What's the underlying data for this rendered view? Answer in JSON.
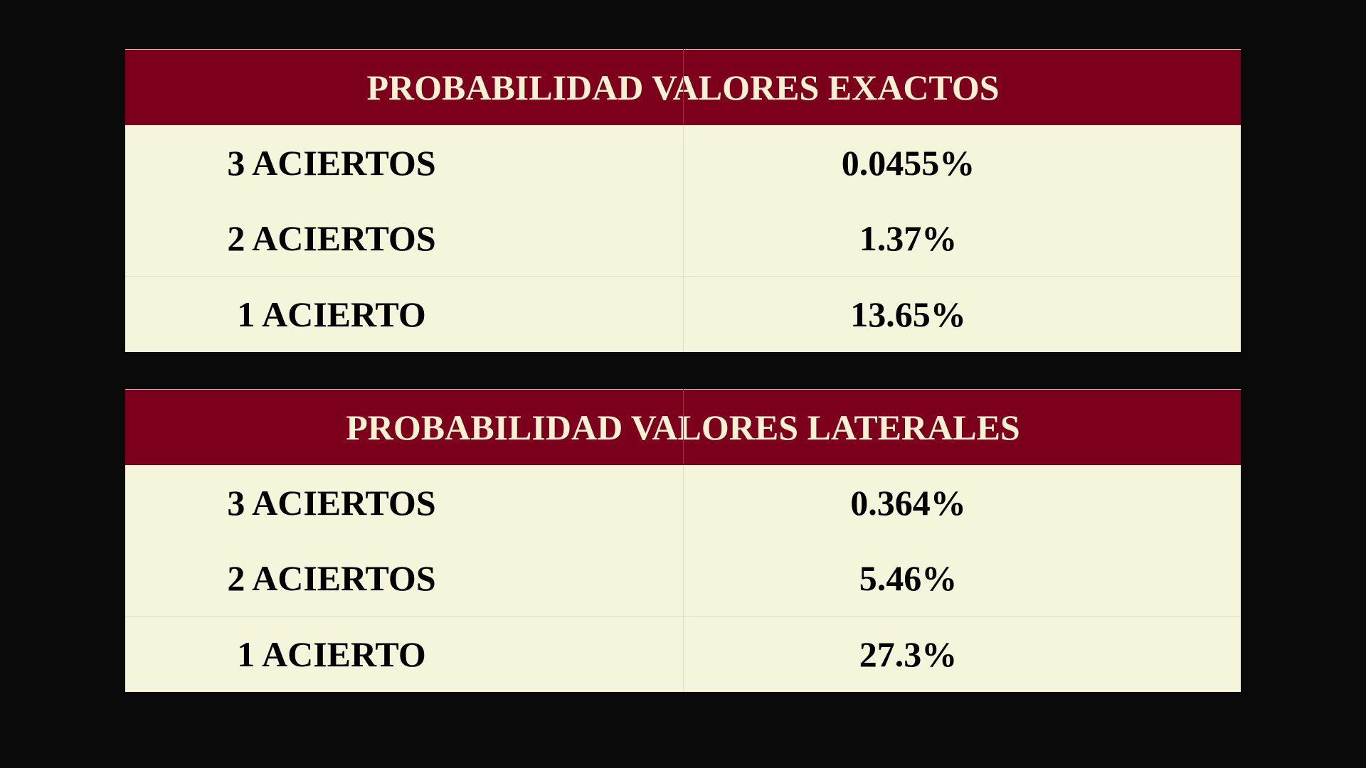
{
  "tables": [
    {
      "title": "PROBABILIDAD VALORES EXACTOS",
      "rows": [
        {
          "label": "3 ACIERTOS",
          "value": "0.0455%"
        },
        {
          "label": "2 ACIERTOS",
          "value": "1.37%"
        },
        {
          "label": "1 ACIERTO",
          "value": "13.65%"
        }
      ]
    },
    {
      "title": "PROBABILIDAD VALORES LATERALES",
      "rows": [
        {
          "label": "3 ACIERTOS",
          "value": "0.364%"
        },
        {
          "label": "2 ACIERTOS",
          "value": "5.46%"
        },
        {
          "label": "1 ACIERTO",
          "value": "27.3%"
        }
      ]
    }
  ],
  "colors": {
    "background": "#0a0a0a",
    "header_fill": "#7c001c",
    "header_text": "#f6f1d3",
    "body_fill": "#f5f5dc",
    "body_text": "#000000"
  }
}
